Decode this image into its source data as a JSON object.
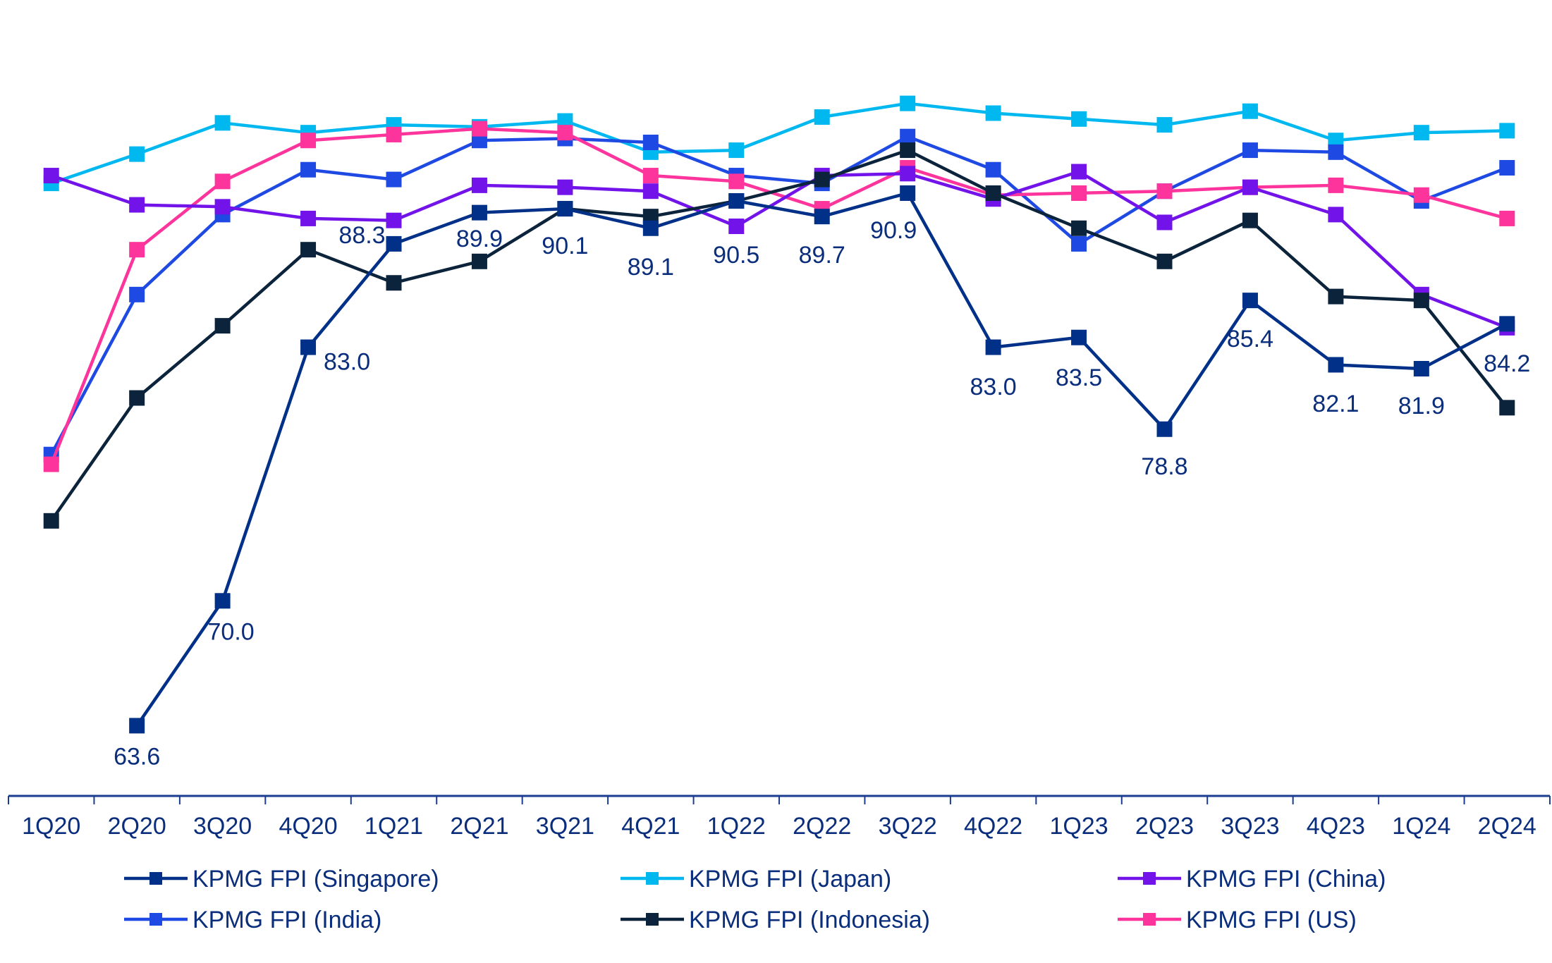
{
  "chart_data": {
    "type": "line",
    "title": "",
    "xlabel": "",
    "ylabel": "",
    "ylim": [
      60,
      100.8
    ],
    "grid": false,
    "legend": "bottom",
    "categories": [
      "1Q20",
      "2Q20",
      "3Q20",
      "4Q20",
      "1Q21",
      "2Q21",
      "3Q21",
      "4Q21",
      "1Q22",
      "2Q22",
      "3Q22",
      "4Q22",
      "1Q23",
      "2Q23",
      "3Q23",
      "4Q23",
      "1Q24",
      "2Q24"
    ],
    "series": [
      {
        "name": "KPMG FPI (Singapore)",
        "color": "#003087",
        "values": [
          null,
          63.6,
          70.0,
          83.0,
          88.3,
          89.9,
          90.1,
          89.1,
          90.5,
          89.7,
          90.9,
          83.0,
          83.5,
          78.8,
          85.4,
          82.1,
          81.9,
          84.2
        ],
        "labels": [
          null,
          "63.6",
          "70.0",
          "83.0",
          "88.3",
          "89.9",
          "90.1",
          "89.1",
          "90.5",
          "89.7",
          "90.9",
          "83.0",
          "83.5",
          "78.8",
          "85.4",
          "82.1",
          "81.9",
          "84.2"
        ]
      },
      {
        "name": "KPMG FPI (Japan)",
        "color": "#00b8f0",
        "values": [
          91.4,
          92.9,
          94.5,
          94.0,
          94.4,
          94.3,
          94.6,
          93.0,
          93.1,
          94.8,
          95.5,
          95.0,
          94.7,
          94.4,
          95.1,
          93.6,
          94.0,
          94.1
        ]
      },
      {
        "name": "KPMG FPI (China)",
        "color": "#7213ea",
        "values": [
          91.8,
          90.3,
          90.2,
          89.6,
          89.5,
          91.3,
          91.2,
          91.0,
          89.2,
          91.8,
          91.9,
          90.6,
          92.0,
          89.4,
          91.2,
          89.8,
          85.7,
          84.0
        ]
      },
      {
        "name": "KPMG FPI (India)",
        "color": "#1e49e2",
        "values": [
          77.5,
          85.7,
          89.8,
          92.1,
          91.6,
          93.6,
          93.7,
          93.5,
          91.8,
          91.4,
          93.8,
          92.1,
          88.3,
          91.0,
          93.1,
          93.0,
          90.5,
          92.2
        ]
      },
      {
        "name": "KPMG FPI (Indonesia)",
        "color": "#0c233c",
        "values": [
          74.1,
          80.4,
          84.1,
          88.0,
          86.3,
          87.4,
          90.1,
          89.7,
          90.5,
          91.6,
          93.1,
          90.9,
          89.1,
          87.4,
          89.5,
          85.6,
          85.4,
          79.9
        ]
      },
      {
        "name": "KPMG FPI (US)",
        "color": "#fd349c",
        "values": [
          77.0,
          88.0,
          91.5,
          93.6,
          93.9,
          94.2,
          94.0,
          91.8,
          91.5,
          90.1,
          92.2,
          90.8,
          90.9,
          91.0,
          91.2,
          91.3,
          90.8,
          89.6
        ]
      }
    ]
  },
  "legend_order": [
    0,
    1,
    2,
    3,
    4,
    5
  ],
  "axis_color": "#1a3d8f",
  "text_color": "#0a2e7c"
}
